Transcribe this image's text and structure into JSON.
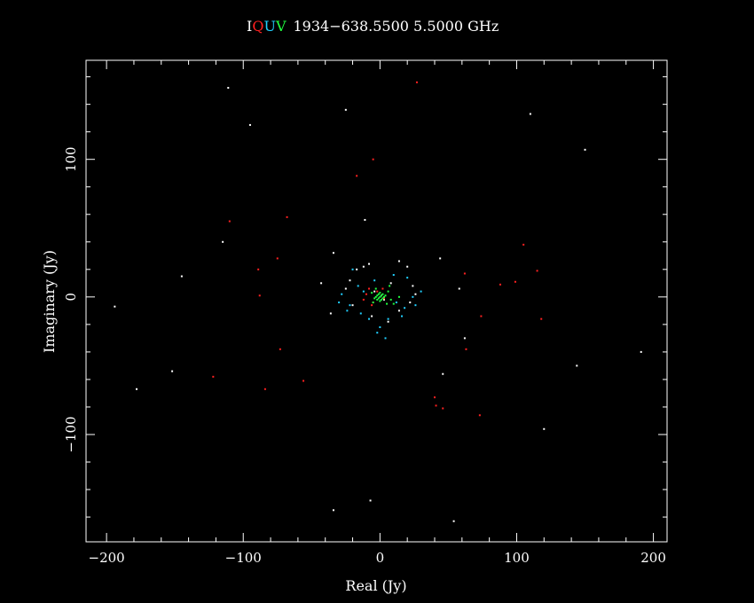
{
  "title": {
    "stokes": [
      {
        "letter": "I",
        "color": "#ffffff"
      },
      {
        "letter": "Q",
        "color": "#ff2020"
      },
      {
        "letter": "U",
        "color": "#20d0ff"
      },
      {
        "letter": "V",
        "color": "#20ff40"
      }
    ],
    "text": "1934−638.5500 5.5000 GHz"
  },
  "chart_data": {
    "type": "scatter",
    "xlabel": "Real (Jy)",
    "ylabel": "Imaginary (Jy)",
    "xlim": [
      -215,
      210
    ],
    "ylim": [
      -178,
      172
    ],
    "x_ticks": [
      -200,
      -100,
      0,
      100,
      200
    ],
    "x_tick_labels": [
      "−200",
      "−100",
      "0",
      "100",
      "200"
    ],
    "y_ticks": [
      -100,
      0,
      100
    ],
    "y_tick_labels": [
      "−100",
      "0",
      "100"
    ],
    "grid": false,
    "background": "#000000",
    "series": [
      {
        "name": "I",
        "color": "#ffffff",
        "points": [
          [
            -111,
            152
          ],
          [
            -95,
            125
          ],
          [
            -25,
            136
          ],
          [
            110,
            133
          ],
          [
            150,
            107
          ],
          [
            -11,
            56
          ],
          [
            -115,
            40
          ],
          [
            -145,
            15
          ],
          [
            -194,
            -7
          ],
          [
            -178,
            -67
          ],
          [
            -152,
            -54
          ],
          [
            -34,
            32
          ],
          [
            -43,
            10
          ],
          [
            -36,
            -12
          ],
          [
            44,
            28
          ],
          [
            58,
            6
          ],
          [
            62,
            -30
          ],
          [
            144,
            -50
          ],
          [
            191,
            -40
          ],
          [
            120,
            -96
          ],
          [
            -34,
            -155
          ],
          [
            -7,
            -148
          ],
          [
            54,
            -163
          ],
          [
            46,
            -56
          ],
          [
            -17,
            20
          ],
          [
            -12,
            22
          ],
          [
            -8,
            24
          ],
          [
            14,
            26
          ],
          [
            20,
            22
          ],
          [
            -22,
            12
          ],
          [
            -25,
            6
          ],
          [
            24,
            8
          ],
          [
            26,
            2
          ],
          [
            22,
            -4
          ],
          [
            -20,
            -6
          ],
          [
            -6,
            -14
          ],
          [
            6,
            -18
          ],
          [
            14,
            -10
          ],
          [
            8,
            10
          ],
          [
            -4,
            4
          ],
          [
            3,
            -2
          ],
          [
            1,
            1
          ]
        ]
      },
      {
        "name": "Q",
        "color": "#ff2020",
        "points": [
          [
            27,
            156
          ],
          [
            -5,
            100
          ],
          [
            -17,
            88
          ],
          [
            -110,
            55
          ],
          [
            -68,
            58
          ],
          [
            -75,
            28
          ],
          [
            -89,
            20
          ],
          [
            -88,
            1
          ],
          [
            -73,
            -38
          ],
          [
            -122,
            -58
          ],
          [
            -84,
            -67
          ],
          [
            -56,
            -61
          ],
          [
            62,
            17
          ],
          [
            105,
            38
          ],
          [
            88,
            9
          ],
          [
            99,
            11
          ],
          [
            115,
            19
          ],
          [
            118,
            -16
          ],
          [
            74,
            -14
          ],
          [
            63,
            -38
          ],
          [
            40,
            -73
          ],
          [
            41,
            -79
          ],
          [
            46,
            -81
          ],
          [
            73,
            -86
          ],
          [
            -10,
            2
          ],
          [
            -5,
            -4
          ],
          [
            -2,
            4
          ],
          [
            3,
            -1
          ],
          [
            -8,
            6
          ],
          [
            -6,
            -6
          ],
          [
            2,
            6
          ],
          [
            -12,
            -2
          ]
        ]
      },
      {
        "name": "U",
        "color": "#20d0ff",
        "points": [
          [
            -20,
            20
          ],
          [
            -16,
            8
          ],
          [
            -22,
            -6
          ],
          [
            -14,
            -12
          ],
          [
            -28,
            2
          ],
          [
            -24,
            -10
          ],
          [
            20,
            14
          ],
          [
            24,
            0
          ],
          [
            18,
            -8
          ],
          [
            16,
            -14
          ],
          [
            26,
            -6
          ],
          [
            0,
            -22
          ],
          [
            -2,
            -26
          ],
          [
            4,
            -30
          ],
          [
            6,
            -16
          ],
          [
            -8,
            -16
          ],
          [
            10,
            16
          ],
          [
            -4,
            12
          ],
          [
            12,
            -4
          ],
          [
            -12,
            4
          ],
          [
            30,
            4
          ],
          [
            -30,
            -4
          ]
        ]
      },
      {
        "name": "V",
        "color": "#20ff40",
        "points": [
          [
            0,
            0
          ],
          [
            1,
            1
          ],
          [
            -1,
            -1
          ],
          [
            2,
            -1
          ],
          [
            -2,
            1
          ],
          [
            1,
            -2
          ],
          [
            -1,
            2
          ],
          [
            3,
            0
          ],
          [
            -3,
            0
          ],
          [
            0,
            3
          ],
          [
            0,
            -3
          ],
          [
            2,
            2
          ],
          [
            -2,
            -2
          ],
          [
            4,
            1
          ],
          [
            -4,
            -1
          ],
          [
            6,
            4
          ],
          [
            -6,
            3
          ],
          [
            8,
            -2
          ],
          [
            10,
            -5
          ],
          [
            14,
            0
          ],
          [
            -3,
            6
          ],
          [
            5,
            -5
          ],
          [
            -5,
            -4
          ],
          [
            7,
            8
          ]
        ]
      }
    ]
  }
}
